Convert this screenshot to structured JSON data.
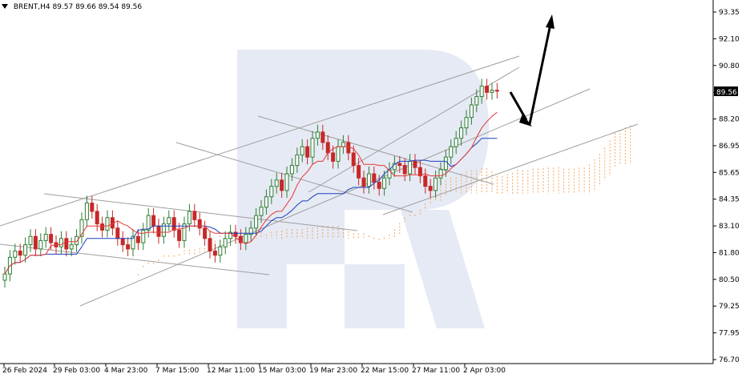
{
  "header": {
    "symbol": "BRENT,H4",
    "ohlc": "89.57 89.66 89.54 89.56"
  },
  "colors": {
    "bull": "#2e7d32",
    "bear": "#c62828",
    "tenkan": "#e53935",
    "kijun": "#1e3fbf",
    "cloud": "#f5a35c",
    "trend": "#9e9e9e",
    "arrow": "#000000",
    "watermark": "#e6eaf4"
  },
  "chart_data": {
    "type": "candlestick",
    "y_ticks": [
      "93.35",
      "92.10",
      "90.80",
      "89.56",
      "88.20",
      "86.95",
      "85.65",
      "84.35",
      "83.10",
      "81.80",
      "80.50",
      "79.25",
      "77.95",
      "76.70"
    ],
    "x_ticks": [
      "26 Feb 2024",
      "29 Feb 03:00",
      "4 Mar 23:00",
      "7 Mar 15:00",
      "12 Mar 11:00",
      "15 Mar 03:00",
      "19 Mar 23:00",
      "22 Mar 15:00",
      "27 Mar 11:00",
      "2 Apr 03:00"
    ],
    "ylim": [
      76.7,
      93.35
    ],
    "current_price": "89.56",
    "closes": [
      80.8,
      81.6,
      81.9,
      81.7,
      82.2,
      82.6,
      82.0,
      82.4,
      82.7,
      82.3,
      82.1,
      82.5,
      82.0,
      82.2,
      82.6,
      83.4,
      84.2,
      83.8,
      83.2,
      82.9,
      83.5,
      83.0,
      82.5,
      82.2,
      82.0,
      82.6,
      82.3,
      82.9,
      83.6,
      83.1,
      82.6,
      83.2,
      83.5,
      82.9,
      82.4,
      83.2,
      83.8,
      83.4,
      83.0,
      82.5,
      81.9,
      81.7,
      82.1,
      82.5,
      82.8,
      82.6,
      82.3,
      82.7,
      83.0,
      83.6,
      84.0,
      84.5,
      85.0,
      85.3,
      84.8,
      85.6,
      86.0,
      86.5,
      86.9,
      86.4,
      87.3,
      87.6,
      87.1,
      86.6,
      86.2,
      86.9,
      87.1,
      86.6,
      86.0,
      85.4,
      85.0,
      85.6,
      85.2,
      84.9,
      85.4,
      85.8,
      86.1,
      86.0,
      85.6,
      86.2,
      85.9,
      85.5,
      85.0,
      84.8,
      85.4,
      85.8,
      86.4,
      86.9,
      87.3,
      87.8,
      88.3,
      88.9,
      89.3,
      89.8,
      89.5,
      89.6,
      89.56
    ]
  }
}
